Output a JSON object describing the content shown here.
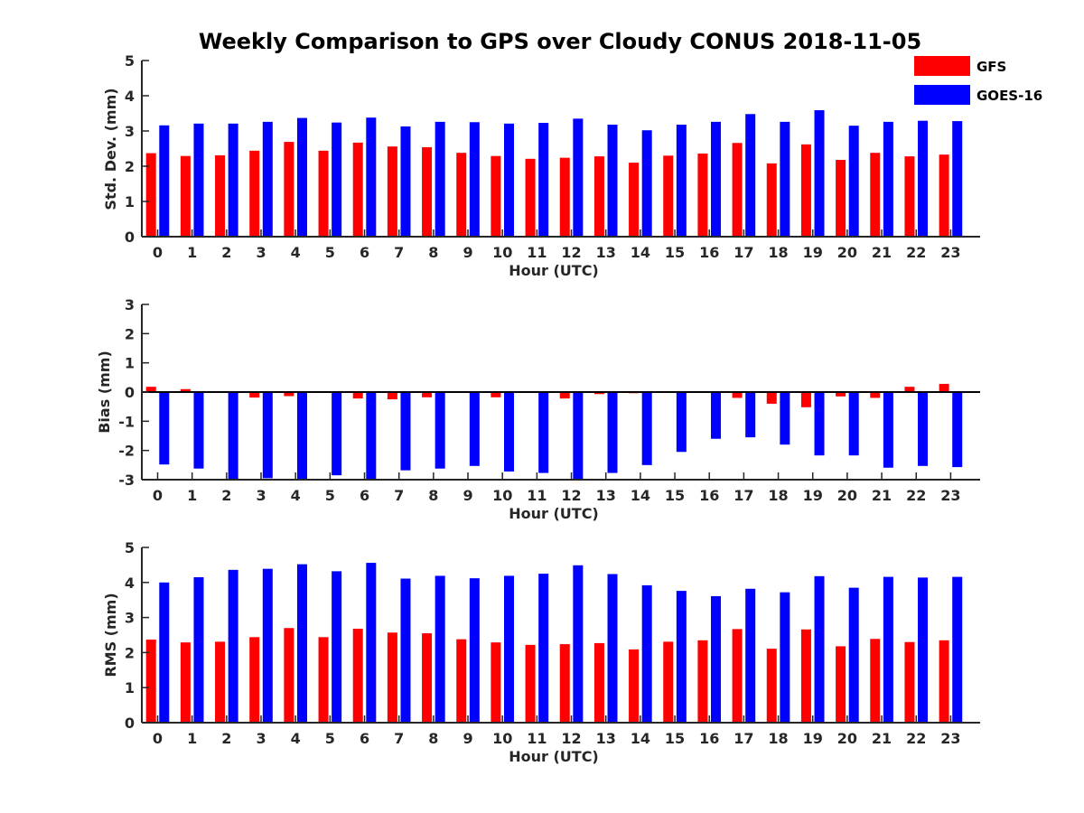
{
  "title": "Weekly Comparison to GPS over Cloudy CONUS 2018-11-05",
  "colors": {
    "GFS": "#ff0000",
    "GOES-16": "#0000ff"
  },
  "legend": {
    "placement": "top-right",
    "entries": [
      "GFS",
      "GOES-16"
    ]
  },
  "chart_data": [
    {
      "type": "bar",
      "xlabel": "Hour (UTC)",
      "ylabel": "Std. Dev. (mm)",
      "ylim": [
        0,
        5
      ],
      "yticks": [
        0,
        1,
        2,
        3,
        4,
        5
      ],
      "categories": [
        0,
        1,
        2,
        3,
        4,
        5,
        6,
        7,
        8,
        9,
        10,
        11,
        12,
        13,
        14,
        15,
        16,
        17,
        18,
        19,
        20,
        21,
        22,
        23
      ],
      "series": [
        {
          "name": "GFS",
          "values": [
            2.37,
            2.29,
            2.31,
            2.44,
            2.69,
            2.44,
            2.67,
            2.56,
            2.54,
            2.38,
            2.29,
            2.21,
            2.24,
            2.28,
            2.1,
            2.3,
            2.36,
            2.66,
            2.08,
            2.62,
            2.18,
            2.38,
            2.28,
            2.33
          ]
        },
        {
          "name": "GOES-16",
          "values": [
            3.16,
            3.21,
            3.21,
            3.26,
            3.37,
            3.24,
            3.38,
            3.13,
            3.26,
            3.25,
            3.21,
            3.23,
            3.35,
            3.18,
            3.02,
            3.18,
            3.26,
            3.48,
            3.26,
            3.59,
            3.15,
            3.26,
            3.29,
            3.28
          ]
        }
      ]
    },
    {
      "type": "bar",
      "xlabel": "Hour (UTC)",
      "ylabel": "Bias (mm)",
      "ylim": [
        -3,
        3
      ],
      "yticks": [
        -3,
        -2,
        -1,
        0,
        1,
        2,
        3
      ],
      "categories": [
        0,
        1,
        2,
        3,
        4,
        5,
        6,
        7,
        8,
        9,
        10,
        11,
        12,
        13,
        14,
        15,
        16,
        17,
        18,
        19,
        20,
        21,
        22,
        23
      ],
      "series": [
        {
          "name": "GFS",
          "values": [
            0.18,
            0.1,
            -0.03,
            -0.19,
            -0.14,
            -0.03,
            -0.22,
            -0.25,
            -0.18,
            0.02,
            -0.18,
            0.02,
            -0.22,
            -0.07,
            -0.04,
            0.0,
            -0.02,
            -0.2,
            -0.4,
            -0.52,
            -0.15,
            -0.2,
            0.18,
            0.28
          ]
        },
        {
          "name": "GOES-16",
          "values": [
            -2.48,
            -2.62,
            -3.0,
            -2.95,
            -3.0,
            -2.85,
            -3.0,
            -2.68,
            -2.62,
            -2.53,
            -2.72,
            -2.77,
            -3.0,
            -2.77,
            -2.5,
            -2.05,
            -1.6,
            -1.55,
            -1.8,
            -2.17,
            -2.17,
            -2.59,
            -2.53,
            -2.57
          ]
        }
      ]
    },
    {
      "type": "bar",
      "xlabel": "Hour (UTC)",
      "ylabel": "RMS (mm)",
      "ylim": [
        0,
        5
      ],
      "yticks": [
        0,
        1,
        2,
        3,
        4,
        5
      ],
      "categories": [
        0,
        1,
        2,
        3,
        4,
        5,
        6,
        7,
        8,
        9,
        10,
        11,
        12,
        13,
        14,
        15,
        16,
        17,
        18,
        19,
        20,
        21,
        22,
        23
      ],
      "series": [
        {
          "name": "GFS",
          "values": [
            2.37,
            2.29,
            2.31,
            2.44,
            2.7,
            2.44,
            2.68,
            2.57,
            2.55,
            2.38,
            2.29,
            2.22,
            2.24,
            2.27,
            2.09,
            2.31,
            2.35,
            2.67,
            2.11,
            2.66,
            2.18,
            2.39,
            2.3,
            2.35
          ]
        },
        {
          "name": "GOES-16",
          "values": [
            4.0,
            4.15,
            4.36,
            4.39,
            4.52,
            4.32,
            4.56,
            4.11,
            4.19,
            4.12,
            4.19,
            4.25,
            4.49,
            4.24,
            3.92,
            3.76,
            3.61,
            3.82,
            3.72,
            4.18,
            3.85,
            4.16,
            4.14,
            4.16
          ]
        }
      ]
    }
  ]
}
